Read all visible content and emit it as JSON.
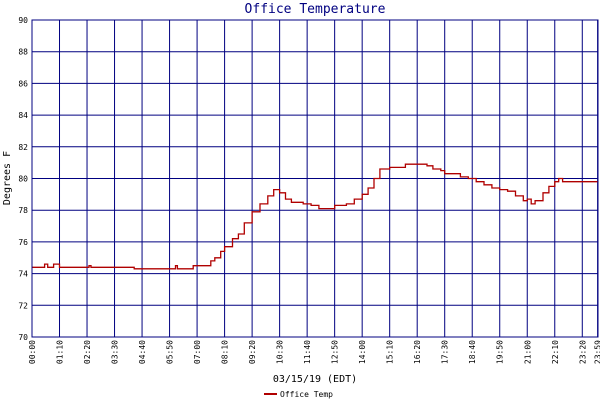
{
  "chart_data": {
    "type": "line",
    "title": "Office Temperature",
    "xlabel": "03/15/19 (EDT)",
    "ylabel": "Degrees F",
    "ylim": [
      70,
      90
    ],
    "yticks": [
      "70",
      "72",
      "74",
      "76",
      "78",
      "80",
      "82",
      "84",
      "86",
      "88",
      "90"
    ],
    "xticks": [
      "00:00",
      "01:10",
      "02:20",
      "03:30",
      "04:40",
      "05:50",
      "07:00",
      "08:10",
      "09:20",
      "10:30",
      "11:40",
      "12:50",
      "14:00",
      "15:10",
      "16:20",
      "17:30",
      "18:40",
      "19:50",
      "21:00",
      "22:10",
      "23:20",
      "23:59"
    ],
    "grid": true,
    "legend_position": "bottom-left",
    "line_color": "#b00000",
    "grid_color": "#000080",
    "series": [
      {
        "name": "Office Temp",
        "points": [
          [
            "00:00",
            74.4
          ],
          [
            "00:30",
            74.4
          ],
          [
            "00:32",
            74.6
          ],
          [
            "00:40",
            74.4
          ],
          [
            "00:55",
            74.6
          ],
          [
            "01:10",
            74.4
          ],
          [
            "02:20",
            74.4
          ],
          [
            "02:25",
            74.5
          ],
          [
            "02:30",
            74.4
          ],
          [
            "04:10",
            74.4
          ],
          [
            "04:20",
            74.3
          ],
          [
            "06:00",
            74.3
          ],
          [
            "06:05",
            74.5
          ],
          [
            "06:10",
            74.3
          ],
          [
            "06:45",
            74.3
          ],
          [
            "06:50",
            74.5
          ],
          [
            "07:20",
            74.5
          ],
          [
            "07:35",
            74.8
          ],
          [
            "07:45",
            75.0
          ],
          [
            "08:00",
            75.4
          ],
          [
            "08:10",
            75.7
          ],
          [
            "08:30",
            76.2
          ],
          [
            "08:45",
            76.5
          ],
          [
            "09:00",
            77.2
          ],
          [
            "09:20",
            77.9
          ],
          [
            "09:40",
            78.4
          ],
          [
            "10:00",
            78.9
          ],
          [
            "10:15",
            79.3
          ],
          [
            "10:30",
            79.1
          ],
          [
            "10:45",
            78.7
          ],
          [
            "11:00",
            78.5
          ],
          [
            "11:30",
            78.4
          ],
          [
            "11:50",
            78.3
          ],
          [
            "12:10",
            78.1
          ],
          [
            "12:40",
            78.1
          ],
          [
            "12:50",
            78.3
          ],
          [
            "13:20",
            78.4
          ],
          [
            "13:40",
            78.7
          ],
          [
            "14:00",
            79.0
          ],
          [
            "14:15",
            79.4
          ],
          [
            "14:30",
            80.0
          ],
          [
            "14:45",
            80.6
          ],
          [
            "15:10",
            80.7
          ],
          [
            "15:40",
            80.7
          ],
          [
            "15:50",
            80.9
          ],
          [
            "16:30",
            80.9
          ],
          [
            "16:45",
            80.8
          ],
          [
            "17:00",
            80.6
          ],
          [
            "17:20",
            80.5
          ],
          [
            "17:30",
            80.3
          ],
          [
            "18:10",
            80.1
          ],
          [
            "18:30",
            80.0
          ],
          [
            "18:50",
            79.8
          ],
          [
            "19:10",
            79.6
          ],
          [
            "19:30",
            79.4
          ],
          [
            "19:50",
            79.3
          ],
          [
            "20:10",
            79.2
          ],
          [
            "20:30",
            78.9
          ],
          [
            "20:50",
            78.6
          ],
          [
            "21:00",
            78.7
          ],
          [
            "21:10",
            78.4
          ],
          [
            "21:20",
            78.6
          ],
          [
            "21:40",
            79.1
          ],
          [
            "21:55",
            79.5
          ],
          [
            "22:10",
            79.8
          ],
          [
            "22:20",
            80.0
          ],
          [
            "22:30",
            79.8
          ],
          [
            "23:59",
            79.8
          ]
        ]
      }
    ]
  }
}
